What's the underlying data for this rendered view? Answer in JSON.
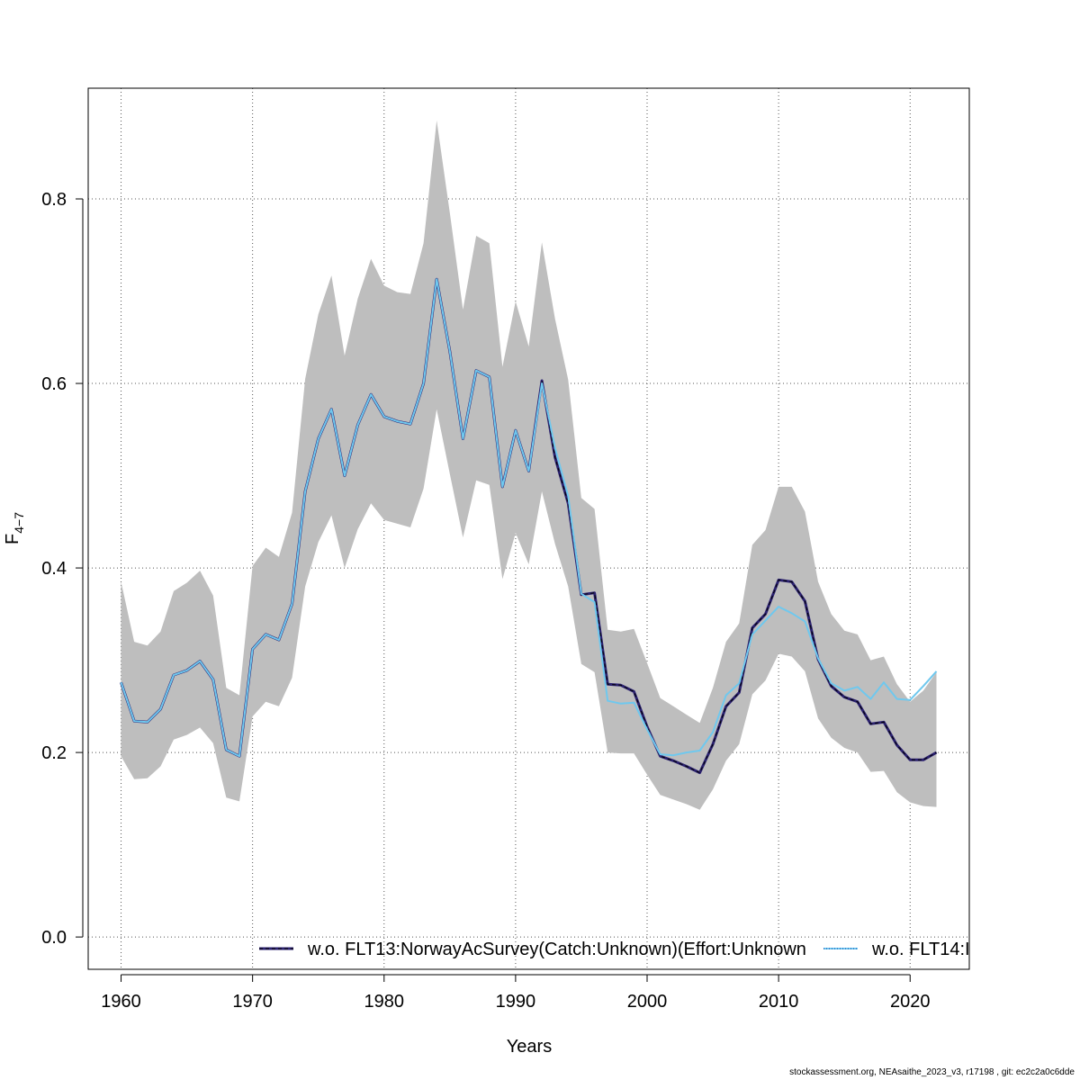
{
  "chart_data": {
    "type": "line",
    "title": "",
    "xlabel": "Years",
    "ylabel_main": "F",
    "ylabel_sub": "4−7",
    "xlim": [
      1957.5,
      2024.5
    ],
    "ylim": [
      -0.035,
      0.92
    ],
    "xticks": [
      1960,
      1970,
      1980,
      1990,
      2000,
      2010,
      2020
    ],
    "yticks": [
      0.0,
      0.2,
      0.4,
      0.6,
      0.8
    ],
    "ytick_labels": [
      "0.0",
      "0.2",
      "0.4",
      "0.6",
      "0.8"
    ],
    "grid": true,
    "legend_position": "bottom",
    "band_color": "#bebebe",
    "x": [
      1960,
      1961,
      1962,
      1963,
      1964,
      1965,
      1966,
      1967,
      1968,
      1969,
      1970,
      1971,
      1972,
      1973,
      1974,
      1975,
      1976,
      1977,
      1978,
      1979,
      1980,
      1981,
      1982,
      1983,
      1984,
      1985,
      1986,
      1987,
      1988,
      1989,
      1990,
      1991,
      1992,
      1993,
      1994,
      1995,
      1996,
      1997,
      1998,
      1999,
      2000,
      2001,
      2002,
      2003,
      2004,
      2005,
      2006,
      2007,
      2008,
      2009,
      2010,
      2011,
      2012,
      2013,
      2014,
      2015,
      2016,
      2017,
      2018,
      2019,
      2020,
      2021,
      2022
    ],
    "band_upper": [
      0.385,
      0.32,
      0.316,
      0.331,
      0.375,
      0.384,
      0.397,
      0.37,
      0.27,
      0.262,
      0.402,
      0.422,
      0.412,
      0.46,
      0.605,
      0.675,
      0.717,
      0.63,
      0.692,
      0.735,
      0.706,
      0.699,
      0.697,
      0.752,
      0.885,
      0.785,
      0.68,
      0.76,
      0.752,
      0.618,
      0.689,
      0.64,
      0.753,
      0.67,
      0.604,
      0.476,
      0.464,
      0.333,
      0.331,
      0.334,
      0.297,
      0.259,
      0.25,
      0.241,
      0.232,
      0.27,
      0.32,
      0.34,
      0.425,
      0.441,
      0.488,
      0.488,
      0.461,
      0.385,
      0.35,
      0.332,
      0.328,
      0.3,
      0.304,
      0.274,
      0.255,
      0.267,
      0.287
    ],
    "band_lower": [
      0.196,
      0.171,
      0.172,
      0.185,
      0.214,
      0.219,
      0.227,
      0.21,
      0.151,
      0.147,
      0.239,
      0.255,
      0.25,
      0.281,
      0.38,
      0.428,
      0.457,
      0.4,
      0.442,
      0.47,
      0.452,
      0.448,
      0.444,
      0.486,
      0.572,
      0.502,
      0.433,
      0.495,
      0.49,
      0.388,
      0.438,
      0.404,
      0.483,
      0.426,
      0.38,
      0.296,
      0.287,
      0.2,
      0.199,
      0.199,
      0.176,
      0.154,
      0.149,
      0.144,
      0.138,
      0.16,
      0.191,
      0.209,
      0.263,
      0.278,
      0.307,
      0.304,
      0.288,
      0.237,
      0.216,
      0.205,
      0.2,
      0.179,
      0.18,
      0.157,
      0.146,
      0.142,
      0.141
    ],
    "series": [
      {
        "name": "w.o. FLT13:NorwayAcSurvey(Catch:Unknown)(Effort:Unknown",
        "color": "#2b2170",
        "dash": "dashed",
        "values": [
          0.276,
          0.234,
          0.233,
          0.247,
          0.284,
          0.289,
          0.299,
          0.279,
          0.203,
          0.196,
          0.312,
          0.328,
          0.322,
          0.361,
          0.483,
          0.54,
          0.572,
          0.5,
          0.555,
          0.588,
          0.564,
          0.559,
          0.556,
          0.6,
          0.713,
          0.635,
          0.54,
          0.614,
          0.607,
          0.488,
          0.549,
          0.505,
          0.603,
          0.52,
          0.47,
          0.371,
          0.373,
          0.274,
          0.273,
          0.266,
          0.228,
          0.196,
          0.191,
          0.185,
          0.178,
          0.209,
          0.25,
          0.265,
          0.335,
          0.35,
          0.387,
          0.385,
          0.364,
          0.301,
          0.272,
          0.26,
          0.255,
          0.231,
          0.233,
          0.208,
          0.192,
          0.192,
          0.2
        ]
      },
      {
        "name": "w.o. FLT14:I",
        "color": "#6fc8ee",
        "dash": "dotted",
        "values": [
          0.276,
          0.234,
          0.233,
          0.247,
          0.284,
          0.289,
          0.299,
          0.279,
          0.203,
          0.196,
          0.312,
          0.328,
          0.322,
          0.361,
          0.483,
          0.54,
          0.572,
          0.5,
          0.555,
          0.588,
          0.564,
          0.559,
          0.556,
          0.6,
          0.713,
          0.635,
          0.54,
          0.614,
          0.607,
          0.488,
          0.549,
          0.505,
          0.6,
          0.53,
          0.478,
          0.372,
          0.363,
          0.256,
          0.253,
          0.254,
          0.225,
          0.198,
          0.197,
          0.2,
          0.202,
          0.222,
          0.262,
          0.275,
          0.328,
          0.343,
          0.358,
          0.351,
          0.342,
          0.302,
          0.275,
          0.267,
          0.271,
          0.258,
          0.276,
          0.258,
          0.257,
          0.272,
          0.288
        ]
      }
    ]
  },
  "footer_text": "stockassessment.org, NEAsaithe_2023_v3, r17198 , git: ec2c2a0c6dde"
}
